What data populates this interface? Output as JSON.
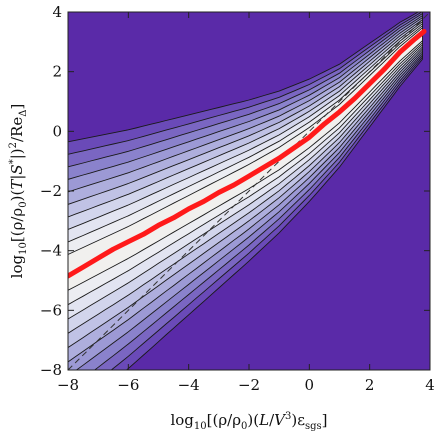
{
  "chart_data": {
    "type": "heatmap",
    "title": "",
    "xlabel_parts": [
      "log",
      "10",
      "[(ρ/ρ",
      "0",
      ")(",
      "L",
      "/",
      "V",
      "3",
      ")ε",
      "sgs",
      "]"
    ],
    "ylabel_parts": [
      "log",
      "10",
      "[(ρ/ρ",
      "0",
      ")(",
      "T",
      "|",
      "S",
      "*",
      "|)",
      "2",
      "/Re",
      "Δ",
      "]"
    ],
    "xlim": [
      -8,
      4
    ],
    "ylim": [
      -8,
      4
    ],
    "xticks": [
      -8,
      -6,
      -4,
      -2,
      0,
      2,
      4
    ],
    "yticks": [
      -8,
      -6,
      -4,
      -2,
      0,
      2,
      4
    ],
    "xtick_labels": [
      "−8",
      "−6",
      "−4",
      "−2",
      "0",
      "2",
      "4"
    ],
    "ytick_labels": [
      "−8",
      "−6",
      "−4",
      "−2",
      "0",
      "2",
      "4"
    ],
    "grid": false,
    "background_color": "#5a2aa8",
    "mean_curve_color": "#ff1a1a",
    "contour_palette": [
      "#6a4ab8",
      "#7a66c2",
      "#8a82cc",
      "#9c99d5",
      "#aeaedd",
      "#c0c2e5",
      "#d2d5ec",
      "#e2e4f1",
      "#ecedf2",
      "#f1f0ee"
    ],
    "density_ridge": {
      "x": [
        -8,
        -7,
        -6,
        -5,
        -4,
        -3,
        -2,
        -1,
        0,
        1,
        2,
        3,
        3.8
      ],
      "y": [
        -4.7,
        -4.2,
        -3.7,
        -3.15,
        -2.6,
        -2.05,
        -1.5,
        -0.9,
        -0.2,
        0.6,
        1.6,
        2.6,
        3.3
      ]
    },
    "series": [
      {
        "type": "line",
        "style": "thick solid red",
        "x": [
          -8,
          -7.5,
          -7,
          -6.5,
          -6,
          -5.5,
          -5,
          -4.5,
          -4,
          -3.5,
          -3,
          -2.5,
          -2,
          -1.5,
          -1,
          -0.5,
          0,
          0.5,
          1,
          1.5,
          2,
          2.5,
          3,
          3.5,
          3.8
        ],
        "y": [
          -4.85,
          -4.55,
          -4.25,
          -3.95,
          -3.7,
          -3.45,
          -3.15,
          -2.9,
          -2.6,
          -2.35,
          -2.05,
          -1.8,
          -1.5,
          -1.2,
          -0.9,
          -0.55,
          -0.2,
          0.25,
          0.65,
          1.1,
          1.6,
          2.1,
          2.65,
          3.1,
          3.35
        ]
      },
      {
        "type": "line",
        "style": "dashed",
        "x": [
          -8,
          4
        ],
        "y": [
          -8,
          4
        ]
      }
    ]
  }
}
